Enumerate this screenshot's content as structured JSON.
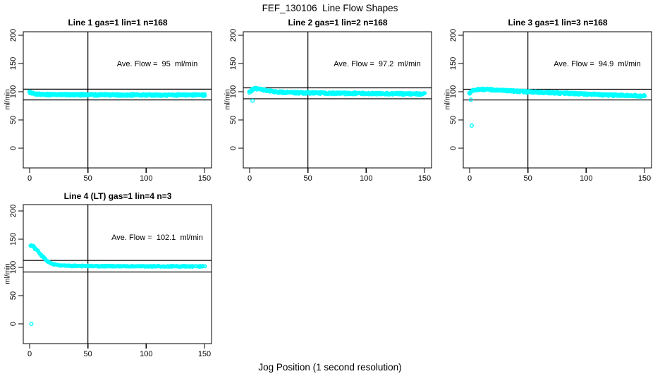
{
  "title": "FEF_130106  Line Flow Shapes",
  "xlabel": "Jog Position (1 second resolution)",
  "ylabel": "ml/min",
  "colors": {
    "points": "#00FFFF",
    "axis": "#000000",
    "background": "#FFFFFF"
  },
  "chart_data": [
    {
      "type": "scatter",
      "title": "Line 1 gas=1 lin=1 n=168",
      "n": 168,
      "annotation": "Ave. Flow =  95  ml/min",
      "ave_flow": 95,
      "ref_lines_y": [
        104.5,
        85.5
      ],
      "vline_x": 50,
      "xlim": [
        0,
        150
      ],
      "ylim": [
        0,
        200
      ],
      "xticks": [
        0,
        50,
        100,
        150
      ],
      "yticks": [
        0,
        50,
        100,
        150,
        200
      ],
      "trend": [
        [
          0,
          99
        ],
        [
          2,
          97.5
        ],
        [
          5,
          96
        ],
        [
          10,
          95.2
        ],
        [
          20,
          94.8
        ],
        [
          60,
          94.5
        ],
        [
          100,
          94.2
        ],
        [
          150,
          94
        ]
      ],
      "band_halfwidth": 1.8,
      "clusters": [
        {
          "x": 0.7,
          "v": 98.5,
          "count": 6,
          "sx": 0.7,
          "sv": 1.2
        }
      ],
      "outliers": []
    },
    {
      "type": "scatter",
      "title": "Line 2 gas=1 lin=2 n=168",
      "n": 168,
      "annotation": "Ave. Flow =  97.2  ml/min",
      "ave_flow": 97.2,
      "ref_lines_y": [
        106.9,
        87.5
      ],
      "vline_x": 50,
      "xlim": [
        0,
        150
      ],
      "ylim": [
        0,
        200
      ],
      "xticks": [
        0,
        50,
        100,
        150
      ],
      "yticks": [
        0,
        50,
        100,
        150,
        200
      ],
      "trend": [
        [
          0,
          99.5
        ],
        [
          1,
          100.5
        ],
        [
          3,
          104
        ],
        [
          5,
          105.5
        ],
        [
          8,
          105
        ],
        [
          15,
          102
        ],
        [
          25,
          99.5
        ],
        [
          40,
          98.2
        ],
        [
          70,
          97.3
        ],
        [
          110,
          96.8
        ],
        [
          150,
          96.3
        ]
      ],
      "band_halfwidth": 1.8,
      "clusters": [],
      "outliers": [
        [
          2.5,
          84
        ]
      ]
    },
    {
      "type": "scatter",
      "title": "Line 3 gas=1 lin=3 n=168",
      "n": 168,
      "annotation": "Ave. Flow =  94.9  ml/min",
      "ave_flow": 94.9,
      "ref_lines_y": [
        104.4,
        85.4
      ],
      "vline_x": 50,
      "xlim": [
        0,
        150
      ],
      "ylim": [
        0,
        200
      ],
      "xticks": [
        0,
        50,
        100,
        150
      ],
      "yticks": [
        0,
        50,
        100,
        150,
        200
      ],
      "trend": [
        [
          0,
          97.5
        ],
        [
          2,
          100
        ],
        [
          4,
          103
        ],
        [
          8,
          104.3
        ],
        [
          15,
          104
        ],
        [
          30,
          102
        ],
        [
          50,
          100
        ],
        [
          80,
          97.5
        ],
        [
          110,
          95
        ],
        [
          130,
          93.5
        ],
        [
          150,
          92.5
        ]
      ],
      "band_halfwidth": 1.8,
      "clusters": [],
      "outliers": [
        [
          1,
          86
        ],
        [
          1.8,
          40
        ]
      ]
    },
    {
      "type": "scatter",
      "title": "Line 4 (LT) gas=1 lin=4 n=3",
      "n": 3,
      "annotation": "Ave. Flow =  102.1  ml/min",
      "ave_flow": 102.1,
      "ref_lines_y": [
        112.3,
        91.9
      ],
      "vline_x": 50,
      "xlim": [
        0,
        150
      ],
      "ylim": [
        0,
        200
      ],
      "xticks": [
        0,
        50,
        100,
        150
      ],
      "yticks": [
        0,
        50,
        100,
        150,
        200
      ],
      "trend": [
        [
          1,
          139.5
        ],
        [
          3,
          137.5
        ],
        [
          5,
          133
        ],
        [
          7,
          128.5
        ],
        [
          9,
          124
        ],
        [
          12,
          117.5
        ],
        [
          15,
          111.5
        ],
        [
          18,
          107.5
        ],
        [
          21,
          105.3
        ],
        [
          25,
          103.8
        ],
        [
          30,
          103
        ],
        [
          40,
          102.6
        ],
        [
          60,
          102.3
        ],
        [
          100,
          102
        ],
        [
          150,
          101.8
        ]
      ],
      "band_halfwidth": 0.9,
      "clusters": [
        {
          "x": 1.8,
          "v": 138.8,
          "count": 10,
          "sx": 1.0,
          "sv": 1.3
        }
      ],
      "outliers": [
        [
          1.5,
          0
        ]
      ]
    }
  ]
}
